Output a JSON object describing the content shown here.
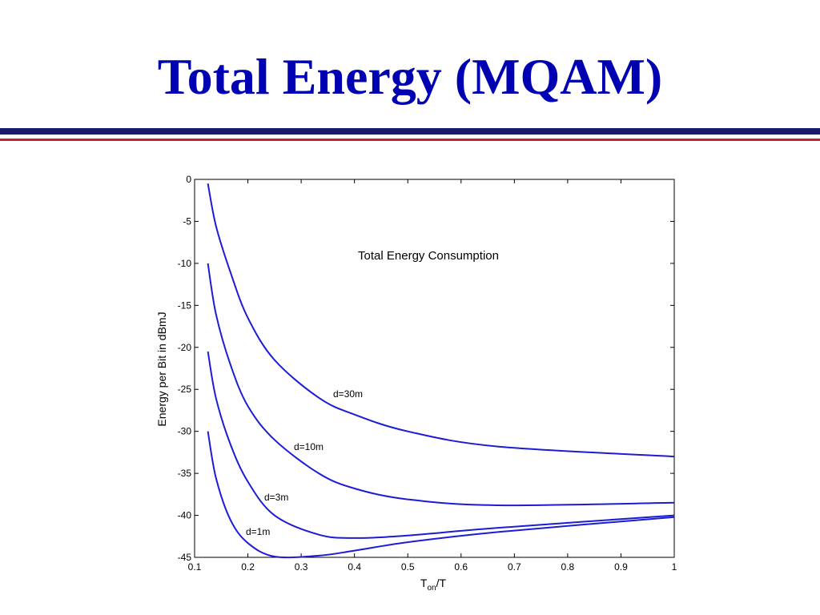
{
  "slide": {
    "title": "Total Energy (MQAM)"
  },
  "colors": {
    "title": "#0000b3",
    "rule_navy": "#1a1a6e",
    "rule_red": "#c81e2a",
    "series": "#1c1cd6"
  },
  "chart_data": {
    "type": "line",
    "title": "Total Energy Consumption",
    "xlabel": "T_on/T",
    "xlabel_main": "T",
    "xlabel_sub": "on",
    "xlabel_tail": "/T",
    "ylabel": "Energy per Bit in dBmJ",
    "xlim": [
      0.1,
      1
    ],
    "ylim": [
      -45,
      0
    ],
    "xticks": [
      "0.1",
      "0.2",
      "0.3",
      "0.4",
      "0.5",
      "0.6",
      "0.7",
      "0.8",
      "0.9",
      "1"
    ],
    "yticks": [
      "0",
      "-5",
      "-10",
      "-15",
      "-20",
      "-25",
      "-30",
      "-35",
      "-40",
      "-45"
    ],
    "grid": false,
    "series": [
      {
        "name": "d=30m",
        "x": [
          0.125,
          0.14,
          0.167,
          0.2,
          0.25,
          0.333,
          0.4,
          0.5,
          0.667,
          1.0
        ],
        "y": [
          -0.5,
          -5.5,
          -11,
          -16.5,
          -21.5,
          -26,
          -28,
          -30,
          -31.8,
          -33
        ]
      },
      {
        "name": "d=10m",
        "x": [
          0.125,
          0.14,
          0.167,
          0.2,
          0.25,
          0.333,
          0.4,
          0.5,
          0.667,
          1.0
        ],
        "y": [
          -10,
          -16,
          -22,
          -27,
          -31,
          -35,
          -36.8,
          -38.1,
          -38.8,
          -38.5
        ]
      },
      {
        "name": "d=3m",
        "x": [
          0.125,
          0.14,
          0.167,
          0.2,
          0.25,
          0.333,
          0.4,
          0.5,
          0.667,
          1.0
        ],
        "y": [
          -20.5,
          -26,
          -31.5,
          -36,
          -40,
          -42.3,
          -42.7,
          -42.4,
          -41.5,
          -40
        ]
      },
      {
        "name": "d=1m",
        "x": [
          0.125,
          0.14,
          0.167,
          0.2,
          0.25,
          0.333,
          0.4,
          0.5,
          0.667,
          1.0
        ],
        "y": [
          -30,
          -35.5,
          -40.5,
          -43.3,
          -44.9,
          -44.8,
          -44.2,
          -43.2,
          -42,
          -40.2
        ]
      }
    ]
  }
}
